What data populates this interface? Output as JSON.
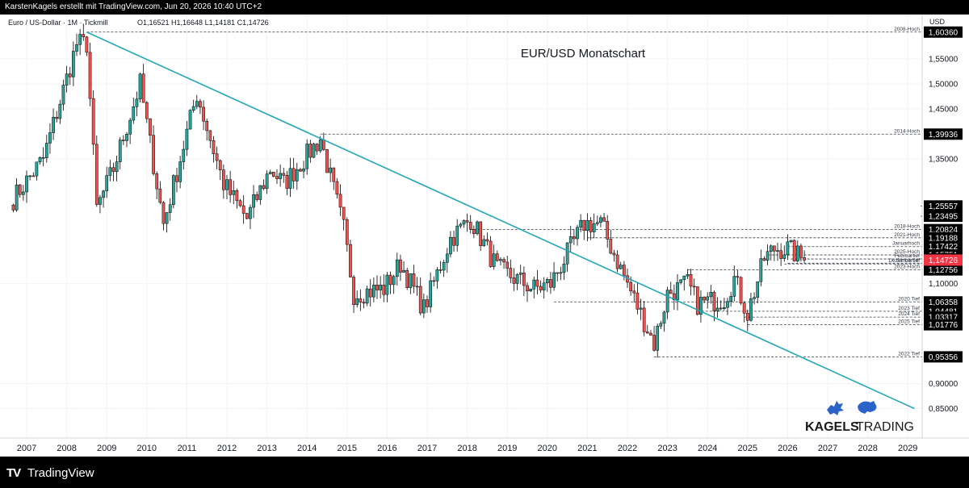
{
  "header": {
    "text": "KarstenKagels erstellt mit TradingView.com, Jun 20, 2026 10:40 UTC+2"
  },
  "symbol_info": {
    "name": "Euro / US-Dollar · 1M · Tickmill",
    "ohlc": "O1,16521  H1,16648  L1,14181  C1,14726"
  },
  "watermark": {
    "brand": "KAGELS",
    "suffix": "TRADING"
  },
  "footer": {
    "logo_mark": "TV",
    "logo_text": "TradingView"
  },
  "colors": {
    "up": "#26a69a",
    "down": "#ef5350",
    "trendline": "#22a7b5",
    "grid": "#f0f3fa",
    "current": "#f23645",
    "label_bg": "#000000"
  },
  "chart_data": {
    "type": "candlestick",
    "title": "EUR/USD Monatschart",
    "currency_label": "USD",
    "y_axis": {
      "min": 0.83,
      "max": 1.63,
      "ticks": [
        "0,85000",
        "0,90000",
        "1,10000",
        "1,35000",
        "1,45000",
        "1,50000",
        "1,55000"
      ]
    },
    "x_axis": {
      "labels": [
        "2007",
        "2008",
        "2009",
        "2010",
        "2011",
        "2012",
        "2013",
        "2014",
        "2015",
        "2016",
        "2017",
        "2018",
        "2019",
        "2020",
        "2021",
        "2022",
        "2023",
        "2024",
        "2025",
        "2026",
        "2027",
        "2028",
        "2029"
      ]
    },
    "last_price": {
      "value": 1.14726,
      "label": "1,14726"
    },
    "trendline": {
      "from": {
        "date": "2008-07",
        "price": 1.6036
      },
      "to": {
        "date": "2029-03",
        "price": 0.85
      }
    },
    "levels": [
      {
        "name": "2008-Hoch",
        "value": 1.6036,
        "label": "1,60360",
        "from": "2008-07"
      },
      {
        "name": "2014-Hoch",
        "value": 1.39936,
        "label": "1,39936",
        "from": "2014-05"
      },
      {
        "name": "",
        "value": 1.25557,
        "label": "1,25557",
        "from": ""
      },
      {
        "name": "",
        "value": 1.23495,
        "label": "1,23495",
        "from": ""
      },
      {
        "name": "2018-Hoch",
        "value": 1.20824,
        "label": "1,20824",
        "from": "2018-02"
      },
      {
        "name": "2021-Hoch",
        "value": 1.19188,
        "label": "1,19188",
        "from": "2021-01"
      },
      {
        "name": "Januarhoch",
        "value": 1.17422,
        "label": "1,17422",
        "from": "2026-01"
      },
      {
        "name": "2025-Hoch",
        "value": 1.15751,
        "label": "1,15751",
        "from": "2025-07"
      },
      {
        "name": "Februartief",
        "value": 1.1495,
        "label": "1,14950",
        "from": "2026-02"
      },
      {
        "name": "Januartief",
        "value": 1.141,
        "label": "",
        "from": "2026-01"
      },
      {
        "name": "Dezembertief",
        "value": 1.1395,
        "label": "",
        "from": "2025-12"
      },
      {
        "name": "2023-Hoch",
        "value": 1.12756,
        "label": "1,12756",
        "from": "2023-07"
      },
      {
        "name": "2020 Tief",
        "value": 1.06358,
        "label": "1,06358",
        "from": "2020-03"
      },
      {
        "name": "2023 Tief",
        "value": 1.04481,
        "label": "1,04481",
        "from": "2023-10"
      },
      {
        "name": "2024 Tief",
        "value": 1.03317,
        "label": "1,03317",
        "from": "2024-12"
      },
      {
        "name": "2025 Tief",
        "value": 1.01776,
        "label": "1,01776",
        "from": "2025-01"
      },
      {
        "name": "2022 Tief",
        "value": 0.95356,
        "label": "0,95356",
        "from": "2022-09"
      }
    ],
    "anchors": [
      {
        "date": "2006-09",
        "price": 1.27
      },
      {
        "date": "2007-06",
        "price": 1.35
      },
      {
        "date": "2008-04",
        "price": 1.58
      },
      {
        "date": "2008-07",
        "price": 1.58
      },
      {
        "date": "2008-10",
        "price": 1.25
      },
      {
        "date": "2009-03",
        "price": 1.33
      },
      {
        "date": "2009-11",
        "price": 1.5
      },
      {
        "date": "2010-06",
        "price": 1.22
      },
      {
        "date": "2011-04",
        "price": 1.48
      },
      {
        "date": "2011-12",
        "price": 1.3
      },
      {
        "date": "2012-07",
        "price": 1.23
      },
      {
        "date": "2013-02",
        "price": 1.33
      },
      {
        "date": "2013-06",
        "price": 1.3
      },
      {
        "date": "2014-05",
        "price": 1.39
      },
      {
        "date": "2014-12",
        "price": 1.21
      },
      {
        "date": "2015-03",
        "price": 1.08
      },
      {
        "date": "2015-12",
        "price": 1.09
      },
      {
        "date": "2016-05",
        "price": 1.14
      },
      {
        "date": "2016-12",
        "price": 1.05
      },
      {
        "date": "2017-08",
        "price": 1.19
      },
      {
        "date": "2018-02",
        "price": 1.23
      },
      {
        "date": "2018-10",
        "price": 1.13
      },
      {
        "date": "2019-09",
        "price": 1.09
      },
      {
        "date": "2020-02",
        "price": 1.1
      },
      {
        "date": "2020-12",
        "price": 1.22
      },
      {
        "date": "2021-05",
        "price": 1.22
      },
      {
        "date": "2021-11",
        "price": 1.13
      },
      {
        "date": "2022-09",
        "price": 0.98
      },
      {
        "date": "2023-01",
        "price": 1.08
      },
      {
        "date": "2023-07",
        "price": 1.1
      },
      {
        "date": "2023-10",
        "price": 1.06
      },
      {
        "date": "2024-06",
        "price": 1.07
      },
      {
        "date": "2024-09",
        "price": 1.11
      },
      {
        "date": "2025-01",
        "price": 1.04
      },
      {
        "date": "2025-06",
        "price": 1.15
      },
      {
        "date": "2025-09",
        "price": 1.17
      },
      {
        "date": "2026-01",
        "price": 1.17
      },
      {
        "date": "2026-06",
        "price": 1.1473
      }
    ]
  }
}
